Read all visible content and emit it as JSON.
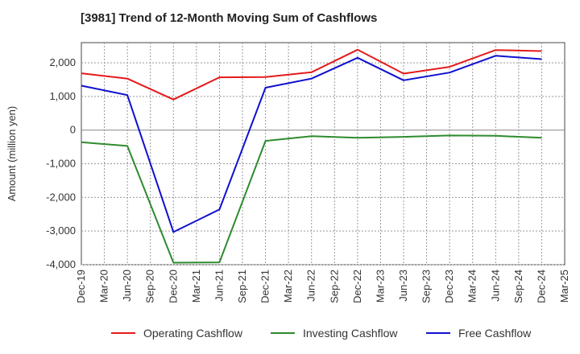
{
  "chart_data": {
    "type": "line",
    "title": "[3981]  Trend of 12-Month Moving Sum of Cashflows",
    "xlabel": "",
    "ylabel": "Amount (million yen)",
    "categories": [
      "Dec-19",
      "Mar-20",
      "Jun-20",
      "Sep-20",
      "Dec-20",
      "Mar-21",
      "Jun-21",
      "Sep-21",
      "Dec-21",
      "Mar-22",
      "Jun-22",
      "Sep-22",
      "Dec-22",
      "Mar-23",
      "Jun-23",
      "Sep-23",
      "Dec-23",
      "Mar-24",
      "Jun-24",
      "Sep-24",
      "Dec-24",
      "Mar-25"
    ],
    "ylim": [
      -4000,
      2600
    ],
    "yticks": [
      2000,
      1000,
      0,
      -1000,
      -2000,
      -3000,
      -4000
    ],
    "ytick_labels": [
      "2,000",
      "1,000",
      "0",
      "-1,000",
      "-2,000",
      "-3,000",
      "-4,000"
    ],
    "grid": true,
    "legend_position": "bottom",
    "series": [
      {
        "name": "Operating Cashflow",
        "color": "#e41a1c",
        "values": [
          1690,
          null,
          1530,
          null,
          910,
          null,
          1570,
          null,
          1580,
          null,
          1720,
          null,
          2390,
          null,
          1680,
          null,
          1880,
          null,
          2380,
          null,
          2350,
          null
        ]
      },
      {
        "name": "Investing Cashflow",
        "color": "#2e8b2e",
        "values": [
          -360,
          null,
          -470,
          null,
          -3940,
          null,
          -3930,
          null,
          -320,
          null,
          -180,
          null,
          -230,
          null,
          -200,
          null,
          -160,
          null,
          -170,
          null,
          -230,
          null
        ]
      },
      {
        "name": "Free Cashflow",
        "color": "#1010d0",
        "values": [
          1320,
          null,
          1040,
          null,
          -3030,
          null,
          -2360,
          null,
          1260,
          null,
          1530,
          null,
          2150,
          null,
          1480,
          null,
          1710,
          null,
          2210,
          null,
          2110,
          null
        ]
      }
    ]
  }
}
